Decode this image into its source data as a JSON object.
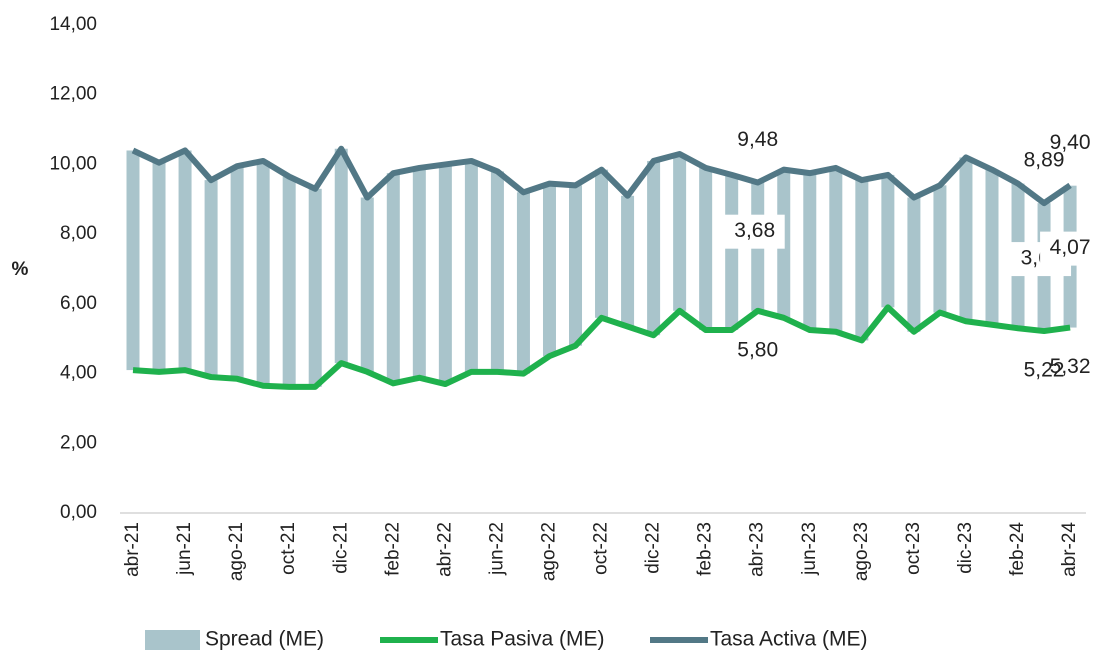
{
  "chart_data": {
    "type": "combo",
    "y_label": "%",
    "categories": [
      "abr-21",
      null,
      "jun-21",
      null,
      "ago-21",
      null,
      "oct-21",
      null,
      "dic-21",
      null,
      "feb-22",
      null,
      "abr-22",
      null,
      "jun-22",
      null,
      "ago-22",
      null,
      "oct-22",
      null,
      "dic-22",
      null,
      "feb-23",
      null,
      "abr-23",
      null,
      "jun-23",
      null,
      "ago-23",
      null,
      "oct-23",
      null,
      "dic-23",
      null,
      "feb-24",
      null,
      "abr-24"
    ],
    "series": [
      {
        "name": "Spread (ME)",
        "type": "bar",
        "color": "#a9c4cb",
        "values": [
          6.3,
          6.0,
          6.3,
          5.65,
          6.1,
          6.45,
          6.03,
          5.68,
          6.15,
          5.0,
          6.03,
          6.02,
          6.3,
          6.05,
          5.75,
          5.2,
          4.95,
          4.6,
          4.25,
          3.75,
          5.0,
          4.5,
          4.65,
          4.45,
          3.68,
          4.25,
          4.5,
          4.7,
          4.6,
          3.8,
          3.85,
          3.65,
          4.7,
          4.45,
          4.15,
          3.67,
          4.07
        ],
        "value_labels": [
          null,
          null,
          null,
          null,
          null,
          null,
          null,
          null,
          null,
          null,
          null,
          null,
          null,
          null,
          null,
          null,
          null,
          null,
          null,
          null,
          null,
          null,
          null,
          null,
          "3,68",
          null,
          null,
          null,
          null,
          null,
          null,
          null,
          null,
          null,
          null,
          "3,67",
          "4,07"
        ]
      },
      {
        "name": "Tasa Pasiva (ME)",
        "type": "line",
        "color": "#1fb14d",
        "values": [
          4.1,
          4.05,
          4.1,
          3.9,
          3.85,
          3.65,
          3.62,
          3.62,
          4.3,
          4.05,
          3.72,
          3.88,
          3.7,
          4.05,
          4.05,
          4.0,
          4.5,
          4.8,
          5.6,
          5.35,
          5.1,
          5.8,
          5.25,
          5.25,
          5.8,
          5.6,
          5.25,
          5.2,
          4.95,
          5.9,
          5.2,
          5.75,
          5.5,
          5.4,
          5.3,
          5.22,
          5.32
        ],
        "value_labels": [
          null,
          null,
          null,
          null,
          null,
          null,
          null,
          null,
          null,
          null,
          null,
          null,
          null,
          null,
          null,
          null,
          null,
          null,
          null,
          null,
          null,
          null,
          null,
          null,
          "5,80",
          null,
          null,
          null,
          null,
          null,
          null,
          null,
          null,
          null,
          null,
          "5,22",
          "5,32"
        ]
      },
      {
        "name": "Tasa Activa (ME)",
        "type": "line",
        "color": "#527886",
        "values": [
          10.4,
          10.05,
          10.4,
          9.55,
          9.95,
          10.1,
          9.65,
          9.3,
          10.45,
          9.05,
          9.75,
          9.9,
          10.0,
          10.1,
          9.8,
          9.2,
          9.45,
          9.4,
          9.85,
          9.1,
          10.1,
          10.3,
          9.9,
          9.7,
          9.48,
          9.85,
          9.75,
          9.9,
          9.55,
          9.7,
          9.05,
          9.4,
          10.2,
          9.85,
          9.45,
          8.89,
          9.4
        ],
        "value_labels": [
          null,
          null,
          null,
          null,
          null,
          null,
          null,
          null,
          null,
          null,
          null,
          null,
          null,
          null,
          null,
          null,
          null,
          null,
          null,
          null,
          null,
          null,
          null,
          null,
          "9,48",
          null,
          null,
          null,
          null,
          null,
          null,
          null,
          null,
          null,
          null,
          "8,89",
          "9,40"
        ]
      }
    ],
    "ylim": [
      0,
      14
    ],
    "yticks": [
      {
        "value": 0,
        "label": "0,00"
      },
      {
        "value": 2,
        "label": "2,00"
      },
      {
        "value": 4,
        "label": "4,00"
      },
      {
        "value": 6,
        "label": "6,00"
      },
      {
        "value": 8,
        "label": "8,00"
      },
      {
        "value": 10,
        "label": "10,00"
      },
      {
        "value": 12,
        "label": "12,00"
      },
      {
        "value": 14,
        "label": "14,00"
      }
    ],
    "legend": "bottom"
  }
}
